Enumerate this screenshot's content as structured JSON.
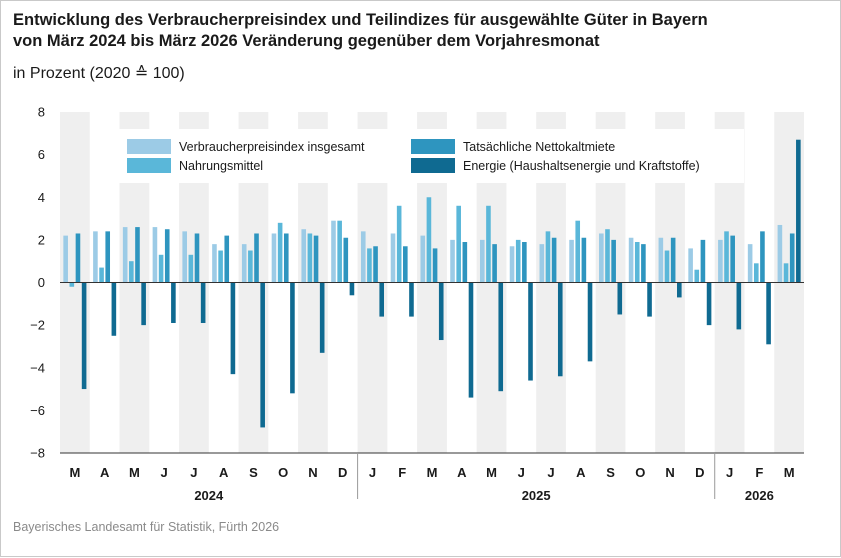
{
  "title_line1": "Entwicklung des Verbraucherpreisindex und Teilindizes für ausgewählte Güter in Bayern",
  "title_line2": "von März 2024 bis März 2026 Veränderung gegenüber dem Vorjahresmonat",
  "subtitle": "in Prozent (2020 ≙ 100)",
  "source": "Bayerisches Landesamt für Statistik, Fürth 2026",
  "chart_data": {
    "type": "bar",
    "title": "Entwicklung des Verbraucherpreisindex und Teilindizes für ausgewählte Güter in Bayern von März 2024 bis März 2026 Veränderung gegenüber dem Vorjahresmonat",
    "ylabel": "in Prozent (2020 ≙ 100)",
    "xlabel": "",
    "ylim": [
      -8,
      8
    ],
    "yticks": [
      8,
      6,
      4,
      2,
      0,
      -2,
      -4,
      -6,
      -8
    ],
    "ytick_labels": [
      "8",
      "6",
      "4",
      "2",
      "0",
      "−2",
      "−4",
      "−6",
      "−8"
    ],
    "grid": false,
    "legend_position": "top",
    "categories": [
      "M",
      "A",
      "M",
      "J",
      "J",
      "A",
      "S",
      "O",
      "N",
      "D",
      "J",
      "F",
      "M",
      "A",
      "M",
      "J",
      "J",
      "A",
      "S",
      "O",
      "N",
      "D",
      "J",
      "F",
      "M"
    ],
    "years": [
      {
        "label": "2024",
        "start": 0,
        "end": 9
      },
      {
        "label": "2025",
        "start": 10,
        "end": 21
      },
      {
        "label": "2026",
        "start": 22,
        "end": 24
      }
    ],
    "series": [
      {
        "name": "Verbraucherpreisindex insgesamt",
        "color": "#9ccbe6",
        "values": [
          2.2,
          2.4,
          2.6,
          2.6,
          2.4,
          1.8,
          1.8,
          2.3,
          2.5,
          2.9,
          2.4,
          2.3,
          2.2,
          2.0,
          2.0,
          1.7,
          1.8,
          2.0,
          2.3,
          2.1,
          2.1,
          1.6,
          2.0,
          1.8,
          2.7
        ]
      },
      {
        "name": "Nahrungsmittel",
        "color": "#5ab7d9",
        "values": [
          -0.2,
          0.7,
          1.0,
          1.3,
          1.3,
          1.5,
          1.5,
          2.8,
          2.3,
          2.9,
          1.6,
          3.6,
          4.0,
          3.6,
          3.6,
          2.0,
          2.4,
          2.9,
          2.5,
          1.9,
          1.5,
          0.6,
          2.4,
          0.9,
          0.9
        ]
      },
      {
        "name": "Tatsächliche Nettokaltmiete",
        "color": "#2e95bf",
        "values": [
          2.3,
          2.4,
          2.6,
          2.5,
          2.3,
          2.2,
          2.3,
          2.3,
          2.2,
          2.1,
          1.7,
          1.7,
          1.6,
          1.9,
          1.8,
          1.9,
          2.1,
          2.1,
          2.0,
          1.8,
          2.1,
          2.0,
          2.2,
          2.4,
          2.3
        ]
      },
      {
        "name": "Energie (Haushaltsenergie und Kraftstoffe)",
        "color": "#0f6a91",
        "values": [
          -5.0,
          -2.5,
          -2.0,
          -1.9,
          -1.9,
          -4.3,
          -6.8,
          -5.2,
          -3.3,
          -0.6,
          -1.6,
          -1.6,
          -2.7,
          -5.4,
          -5.1,
          -4.6,
          -4.4,
          -3.7,
          -1.5,
          -1.6,
          -0.7,
          -2.0,
          -2.2,
          -2.9,
          6.7
        ]
      }
    ]
  }
}
